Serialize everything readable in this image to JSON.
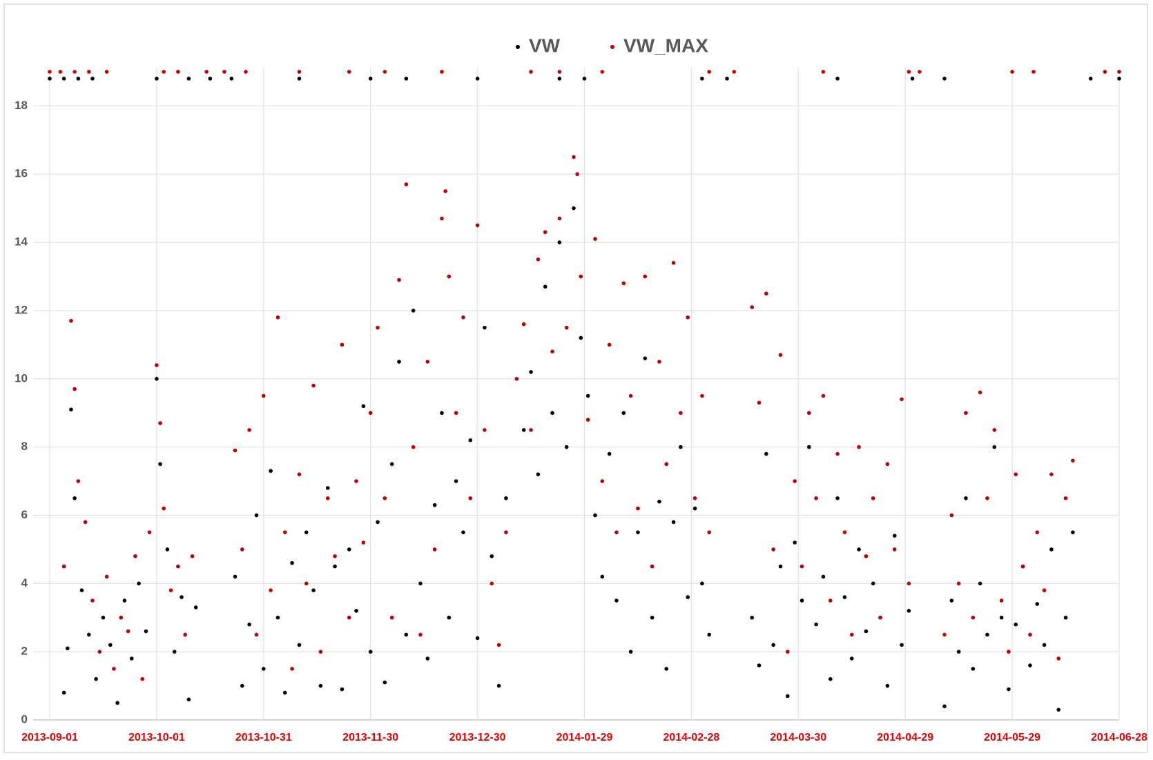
{
  "chart_data": {
    "type": "scatter",
    "xlim": [
      "2013-09-01",
      "2014-06-28"
    ],
    "xticks": [
      "2013-09-01",
      "2013-10-01",
      "2013-10-31",
      "2013-11-30",
      "2013-12-30",
      "2014-01-29",
      "2014-02-28",
      "2014-03-30",
      "2014-04-29",
      "2014-05-29",
      "2014-06-28"
    ],
    "ylim": [
      0,
      19
    ],
    "yticks": [
      0,
      2,
      4,
      6,
      8,
      10,
      12,
      14,
      16,
      18
    ],
    "grid": true,
    "legend": "top",
    "series": [
      {
        "name": "VW",
        "color": "#000000",
        "x": [
          "2013-09-05",
          "2013-09-06",
          "2013-09-07",
          "2013-09-08",
          "2013-09-10",
          "2013-09-12",
          "2013-09-14",
          "2013-09-16",
          "2013-09-18",
          "2013-09-20",
          "2013-09-22",
          "2013-09-24",
          "2013-09-26",
          "2013-09-28",
          "2013-10-01",
          "2013-10-02",
          "2013-10-04",
          "2013-10-06",
          "2013-10-08",
          "2013-10-10",
          "2013-10-12",
          "2013-10-23",
          "2013-10-25",
          "2013-10-27",
          "2013-10-29",
          "2013-10-31",
          "2013-11-02",
          "2013-11-04",
          "2013-11-06",
          "2013-11-08",
          "2013-11-10",
          "2013-11-12",
          "2013-11-14",
          "2013-11-16",
          "2013-11-18",
          "2013-11-20",
          "2013-11-22",
          "2013-11-24",
          "2013-11-26",
          "2013-11-28",
          "2013-11-30",
          "2013-12-02",
          "2013-12-04",
          "2013-12-06",
          "2013-12-08",
          "2013-12-10",
          "2013-12-12",
          "2013-12-14",
          "2013-12-16",
          "2013-12-18",
          "2013-12-20",
          "2013-12-22",
          "2013-12-24",
          "2013-12-26",
          "2013-12-28",
          "2013-12-30",
          "2014-01-01",
          "2014-01-03",
          "2014-01-05",
          "2014-01-07",
          "2014-01-12",
          "2014-01-14",
          "2014-01-16",
          "2014-01-18",
          "2014-01-20",
          "2014-01-22",
          "2014-01-24",
          "2014-01-26",
          "2014-01-28",
          "2014-01-30",
          "2014-02-01",
          "2014-02-03",
          "2014-02-05",
          "2014-02-07",
          "2014-02-09",
          "2014-02-11",
          "2014-02-13",
          "2014-02-15",
          "2014-02-17",
          "2014-02-19",
          "2014-02-21",
          "2014-02-23",
          "2014-02-25",
          "2014-02-27",
          "2014-03-01",
          "2014-03-03",
          "2014-03-05",
          "2014-03-17",
          "2014-03-19",
          "2014-03-21",
          "2014-03-23",
          "2014-03-25",
          "2014-03-27",
          "2014-03-29",
          "2014-03-31",
          "2014-04-02",
          "2014-04-04",
          "2014-04-06",
          "2014-04-08",
          "2014-04-10",
          "2014-04-12",
          "2014-04-14",
          "2014-04-16",
          "2014-04-18",
          "2014-04-20",
          "2014-04-22",
          "2014-04-24",
          "2014-04-26",
          "2014-04-28",
          "2014-04-30",
          "2014-05-10",
          "2014-05-12",
          "2014-05-14",
          "2014-05-16",
          "2014-05-18",
          "2014-05-20",
          "2014-05-22",
          "2014-05-24",
          "2014-05-26",
          "2014-05-28",
          "2014-05-30",
          "2014-06-01",
          "2014-06-03",
          "2014-06-05",
          "2014-06-07",
          "2014-06-09",
          "2014-06-11",
          "2014-06-13",
          "2014-06-15",
          "2013-09-01",
          "2013-09-05",
          "2013-09-09",
          "2013-09-13",
          "2013-10-01",
          "2013-10-10",
          "2013-10-16",
          "2013-10-22",
          "2013-11-10",
          "2013-11-30",
          "2013-12-10",
          "2013-12-30",
          "2014-01-22",
          "2014-01-29",
          "2014-03-03",
          "2014-03-10",
          "2014-04-10",
          "2014-05-01",
          "2014-05-10",
          "2014-06-20",
          "2014-06-28"
        ],
        "values": [
          0.8,
          2.1,
          9.1,
          6.5,
          3.8,
          2.5,
          1.2,
          3.0,
          2.2,
          0.5,
          3.5,
          1.8,
          4.0,
          2.6,
          10.0,
          7.5,
          5.0,
          2.0,
          3.6,
          0.6,
          3.3,
          4.2,
          1.0,
          2.8,
          6.0,
          1.5,
          7.3,
          3.0,
          0.8,
          4.6,
          2.2,
          5.5,
          3.8,
          1.0,
          6.8,
          4.5,
          0.9,
          5.0,
          3.2,
          9.2,
          2.0,
          5.8,
          1.1,
          7.5,
          10.5,
          2.5,
          12.0,
          4.0,
          1.8,
          6.3,
          9.0,
          3.0,
          7.0,
          5.5,
          8.2,
          2.4,
          11.5,
          4.8,
          1.0,
          6.5,
          8.5,
          10.2,
          7.2,
          12.7,
          9.0,
          14.0,
          8.0,
          15.0,
          11.2,
          9.5,
          6.0,
          4.2,
          7.8,
          3.5,
          9.0,
          2.0,
          5.5,
          10.6,
          3.0,
          6.4,
          1.5,
          5.8,
          8.0,
          3.6,
          6.2,
          4.0,
          2.5,
          3.0,
          1.6,
          7.8,
          2.2,
          4.5,
          0.7,
          5.2,
          3.5,
          8.0,
          2.8,
          4.2,
          1.2,
          6.5,
          3.6,
          1.8,
          5.0,
          2.6,
          4.0,
          3.0,
          1.0,
          5.4,
          2.2,
          3.2,
          0.4,
          3.5,
          2.0,
          6.5,
          1.5,
          4.0,
          2.5,
          8.0,
          3.0,
          0.9,
          2.8,
          4.5,
          1.6,
          3.4,
          2.2,
          5.0,
          0.3,
          3.0,
          5.5,
          18.8,
          18.8,
          18.8,
          18.8,
          18.8,
          18.8,
          18.8,
          18.8,
          18.8,
          18.8,
          18.8,
          18.8,
          18.8,
          18.8,
          18.8,
          18.8,
          18.8,
          18.8,
          18.8,
          18.8,
          18.8
        ]
      },
      {
        "name": "VW_MAX",
        "color": "#c00000",
        "x": [
          "2013-09-05",
          "2013-09-07",
          "2013-09-08",
          "2013-09-09",
          "2013-09-11",
          "2013-09-13",
          "2013-09-15",
          "2013-09-17",
          "2013-09-19",
          "2013-09-21",
          "2013-09-23",
          "2013-09-25",
          "2013-09-27",
          "2013-09-29",
          "2013-10-01",
          "2013-10-02",
          "2013-10-03",
          "2013-10-05",
          "2013-10-07",
          "2013-10-09",
          "2013-10-11",
          "2013-10-23",
          "2013-10-25",
          "2013-10-27",
          "2013-10-29",
          "2013-10-31",
          "2013-11-02",
          "2013-11-04",
          "2013-11-06",
          "2013-11-08",
          "2013-11-10",
          "2013-11-12",
          "2013-11-14",
          "2013-11-16",
          "2013-11-18",
          "2013-11-20",
          "2013-11-22",
          "2013-11-24",
          "2013-11-26",
          "2013-11-28",
          "2013-11-30",
          "2013-12-02",
          "2013-12-04",
          "2013-12-06",
          "2013-12-08",
          "2013-12-10",
          "2013-12-12",
          "2013-12-14",
          "2013-12-16",
          "2013-12-18",
          "2013-12-20",
          "2013-12-21",
          "2013-12-22",
          "2013-12-24",
          "2013-12-26",
          "2013-12-28",
          "2013-12-30",
          "2014-01-01",
          "2014-01-03",
          "2014-01-05",
          "2014-01-07",
          "2014-01-10",
          "2014-01-12",
          "2014-01-14",
          "2014-01-16",
          "2014-01-18",
          "2014-01-20",
          "2014-01-22",
          "2014-01-24",
          "2014-01-26",
          "2014-01-27",
          "2014-01-28",
          "2014-01-30",
          "2014-02-01",
          "2014-02-03",
          "2014-02-05",
          "2014-02-07",
          "2014-02-09",
          "2014-02-11",
          "2014-02-13",
          "2014-02-15",
          "2014-02-17",
          "2014-02-19",
          "2014-02-21",
          "2014-02-23",
          "2014-02-25",
          "2014-02-27",
          "2014-03-01",
          "2014-03-03",
          "2014-03-05",
          "2014-03-17",
          "2014-03-19",
          "2014-03-21",
          "2014-03-23",
          "2014-03-25",
          "2014-03-27",
          "2014-03-29",
          "2014-03-31",
          "2014-04-02",
          "2014-04-04",
          "2014-04-06",
          "2014-04-08",
          "2014-04-10",
          "2014-04-12",
          "2014-04-14",
          "2014-04-16",
          "2014-04-18",
          "2014-04-20",
          "2014-04-22",
          "2014-04-24",
          "2014-04-26",
          "2014-04-28",
          "2014-04-30",
          "2014-05-10",
          "2014-05-12",
          "2014-05-14",
          "2014-05-16",
          "2014-05-18",
          "2014-05-20",
          "2014-05-22",
          "2014-05-24",
          "2014-05-26",
          "2014-05-28",
          "2014-05-30",
          "2014-06-01",
          "2014-06-03",
          "2014-06-05",
          "2014-06-07",
          "2014-06-09",
          "2014-06-11",
          "2014-06-13",
          "2014-06-15",
          "2013-09-01",
          "2013-09-04",
          "2013-09-08",
          "2013-09-12",
          "2013-09-17",
          "2013-10-03",
          "2013-10-07",
          "2013-10-15",
          "2013-10-20",
          "2013-10-26",
          "2013-11-10",
          "2013-11-24",
          "2013-12-04",
          "2013-12-20",
          "2014-01-14",
          "2014-01-22",
          "2014-02-03",
          "2014-03-05",
          "2014-03-12",
          "2014-04-06",
          "2014-04-30",
          "2014-05-03",
          "2014-05-29",
          "2014-06-04",
          "2014-06-24",
          "2014-06-28"
        ],
        "values": [
          4.5,
          11.7,
          9.7,
          7.0,
          5.8,
          3.5,
          2.0,
          4.2,
          1.5,
          3.0,
          2.6,
          4.8,
          1.2,
          5.5,
          10.4,
          8.7,
          6.2,
          3.8,
          4.5,
          2.5,
          4.8,
          7.9,
          5.0,
          8.5,
          2.5,
          9.5,
          3.8,
          11.8,
          5.5,
          1.5,
          7.2,
          4.0,
          9.8,
          2.0,
          6.5,
          4.8,
          11.0,
          3.0,
          7.0,
          5.2,
          9.0,
          11.5,
          6.5,
          3.0,
          12.9,
          15.7,
          8.0,
          2.5,
          10.5,
          5.0,
          14.7,
          15.5,
          13.0,
          9.0,
          11.8,
          6.5,
          14.5,
          8.5,
          4.0,
          2.2,
          5.5,
          10.0,
          11.6,
          8.5,
          13.5,
          14.3,
          10.8,
          14.7,
          11.5,
          16.5,
          16.0,
          13.0,
          8.8,
          14.1,
          7.0,
          11.0,
          5.5,
          12.8,
          9.5,
          6.2,
          13.0,
          4.5,
          10.5,
          7.5,
          13.4,
          9.0,
          11.8,
          6.5,
          9.5,
          5.5,
          12.1,
          9.3,
          12.5,
          5.0,
          10.7,
          2.0,
          7.0,
          4.5,
          9.0,
          6.5,
          9.5,
          3.5,
          7.8,
          5.5,
          2.5,
          8.0,
          4.8,
          6.5,
          3.0,
          7.5,
          5.0,
          9.4,
          4.0,
          2.5,
          6.0,
          4.0,
          9.0,
          3.0,
          9.6,
          6.5,
          8.5,
          3.5,
          2.0,
          7.2,
          4.5,
          2.5,
          5.5,
          3.8,
          7.2,
          1.8,
          6.5,
          7.6,
          19,
          19,
          19,
          19,
          19,
          19,
          19,
          19,
          19,
          19,
          19,
          19,
          19,
          19,
          19,
          19,
          19,
          19,
          19,
          19,
          19,
          19,
          19,
          19,
          19,
          19
        ]
      }
    ]
  }
}
